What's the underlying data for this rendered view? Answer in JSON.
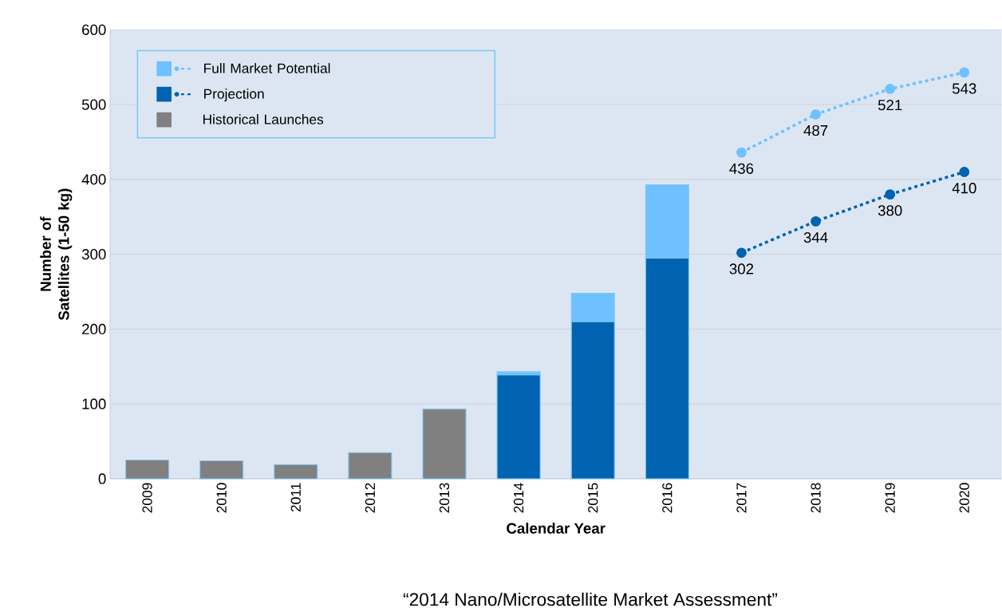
{
  "chart_data": {
    "type": "bar",
    "stacked": true,
    "xlabel": "Calendar Year",
    "ylabel": "Number of Satellites (1-50 kg)",
    "categories": [
      "2009",
      "2010",
      "2011",
      "2012",
      "2013",
      "2014",
      "2015",
      "2016",
      "2017",
      "2018",
      "2019",
      "2020"
    ],
    "series": [
      {
        "name": "Historical Launches",
        "color": "#808080",
        "values": [
          25,
          24,
          19,
          35,
          93,
          null,
          null,
          null,
          null,
          null,
          null,
          null
        ]
      },
      {
        "name": "Projection",
        "color": "#0063b1",
        "values": [
          null,
          null,
          null,
          null,
          null,
          139,
          210,
          295,
          null,
          null,
          null,
          null
        ]
      },
      {
        "name": "Full Market Potential",
        "color": "#6fc0ff",
        "values": [
          null,
          null,
          null,
          null,
          null,
          4,
          38,
          98,
          null,
          null,
          null,
          null
        ]
      },
      {
        "type": "line",
        "color": "#0063b1",
        "marker": "circle",
        "line_style": "dashed",
        "values": [
          null,
          null,
          null,
          null,
          null,
          null,
          null,
          null,
          302,
          344,
          380,
          410
        ],
        "value_labels": [
          null,
          null,
          null,
          null,
          null,
          null,
          null,
          null,
          "302",
          "344",
          "380",
          "410"
        ]
      },
      {
        "type": "line",
        "color": "#6fc0ff",
        "marker": "circle",
        "line_style": "dashed",
        "values": [
          null,
          null,
          null,
          null,
          null,
          null,
          null,
          null,
          436,
          487,
          521,
          543
        ],
        "value_labels": [
          null,
          null,
          null,
          null,
          null,
          null,
          null,
          null,
          "436",
          "487",
          "521",
          "543"
        ]
      }
    ],
    "ylim": [
      0,
      600
    ],
    "yticks": [
      0,
      100,
      200,
      300,
      400,
      500,
      600
    ],
    "grid": "y",
    "legend": "top left",
    "annotations": [
      "“2014 Nano/Microsatellite Market Assessment”"
    ]
  }
}
